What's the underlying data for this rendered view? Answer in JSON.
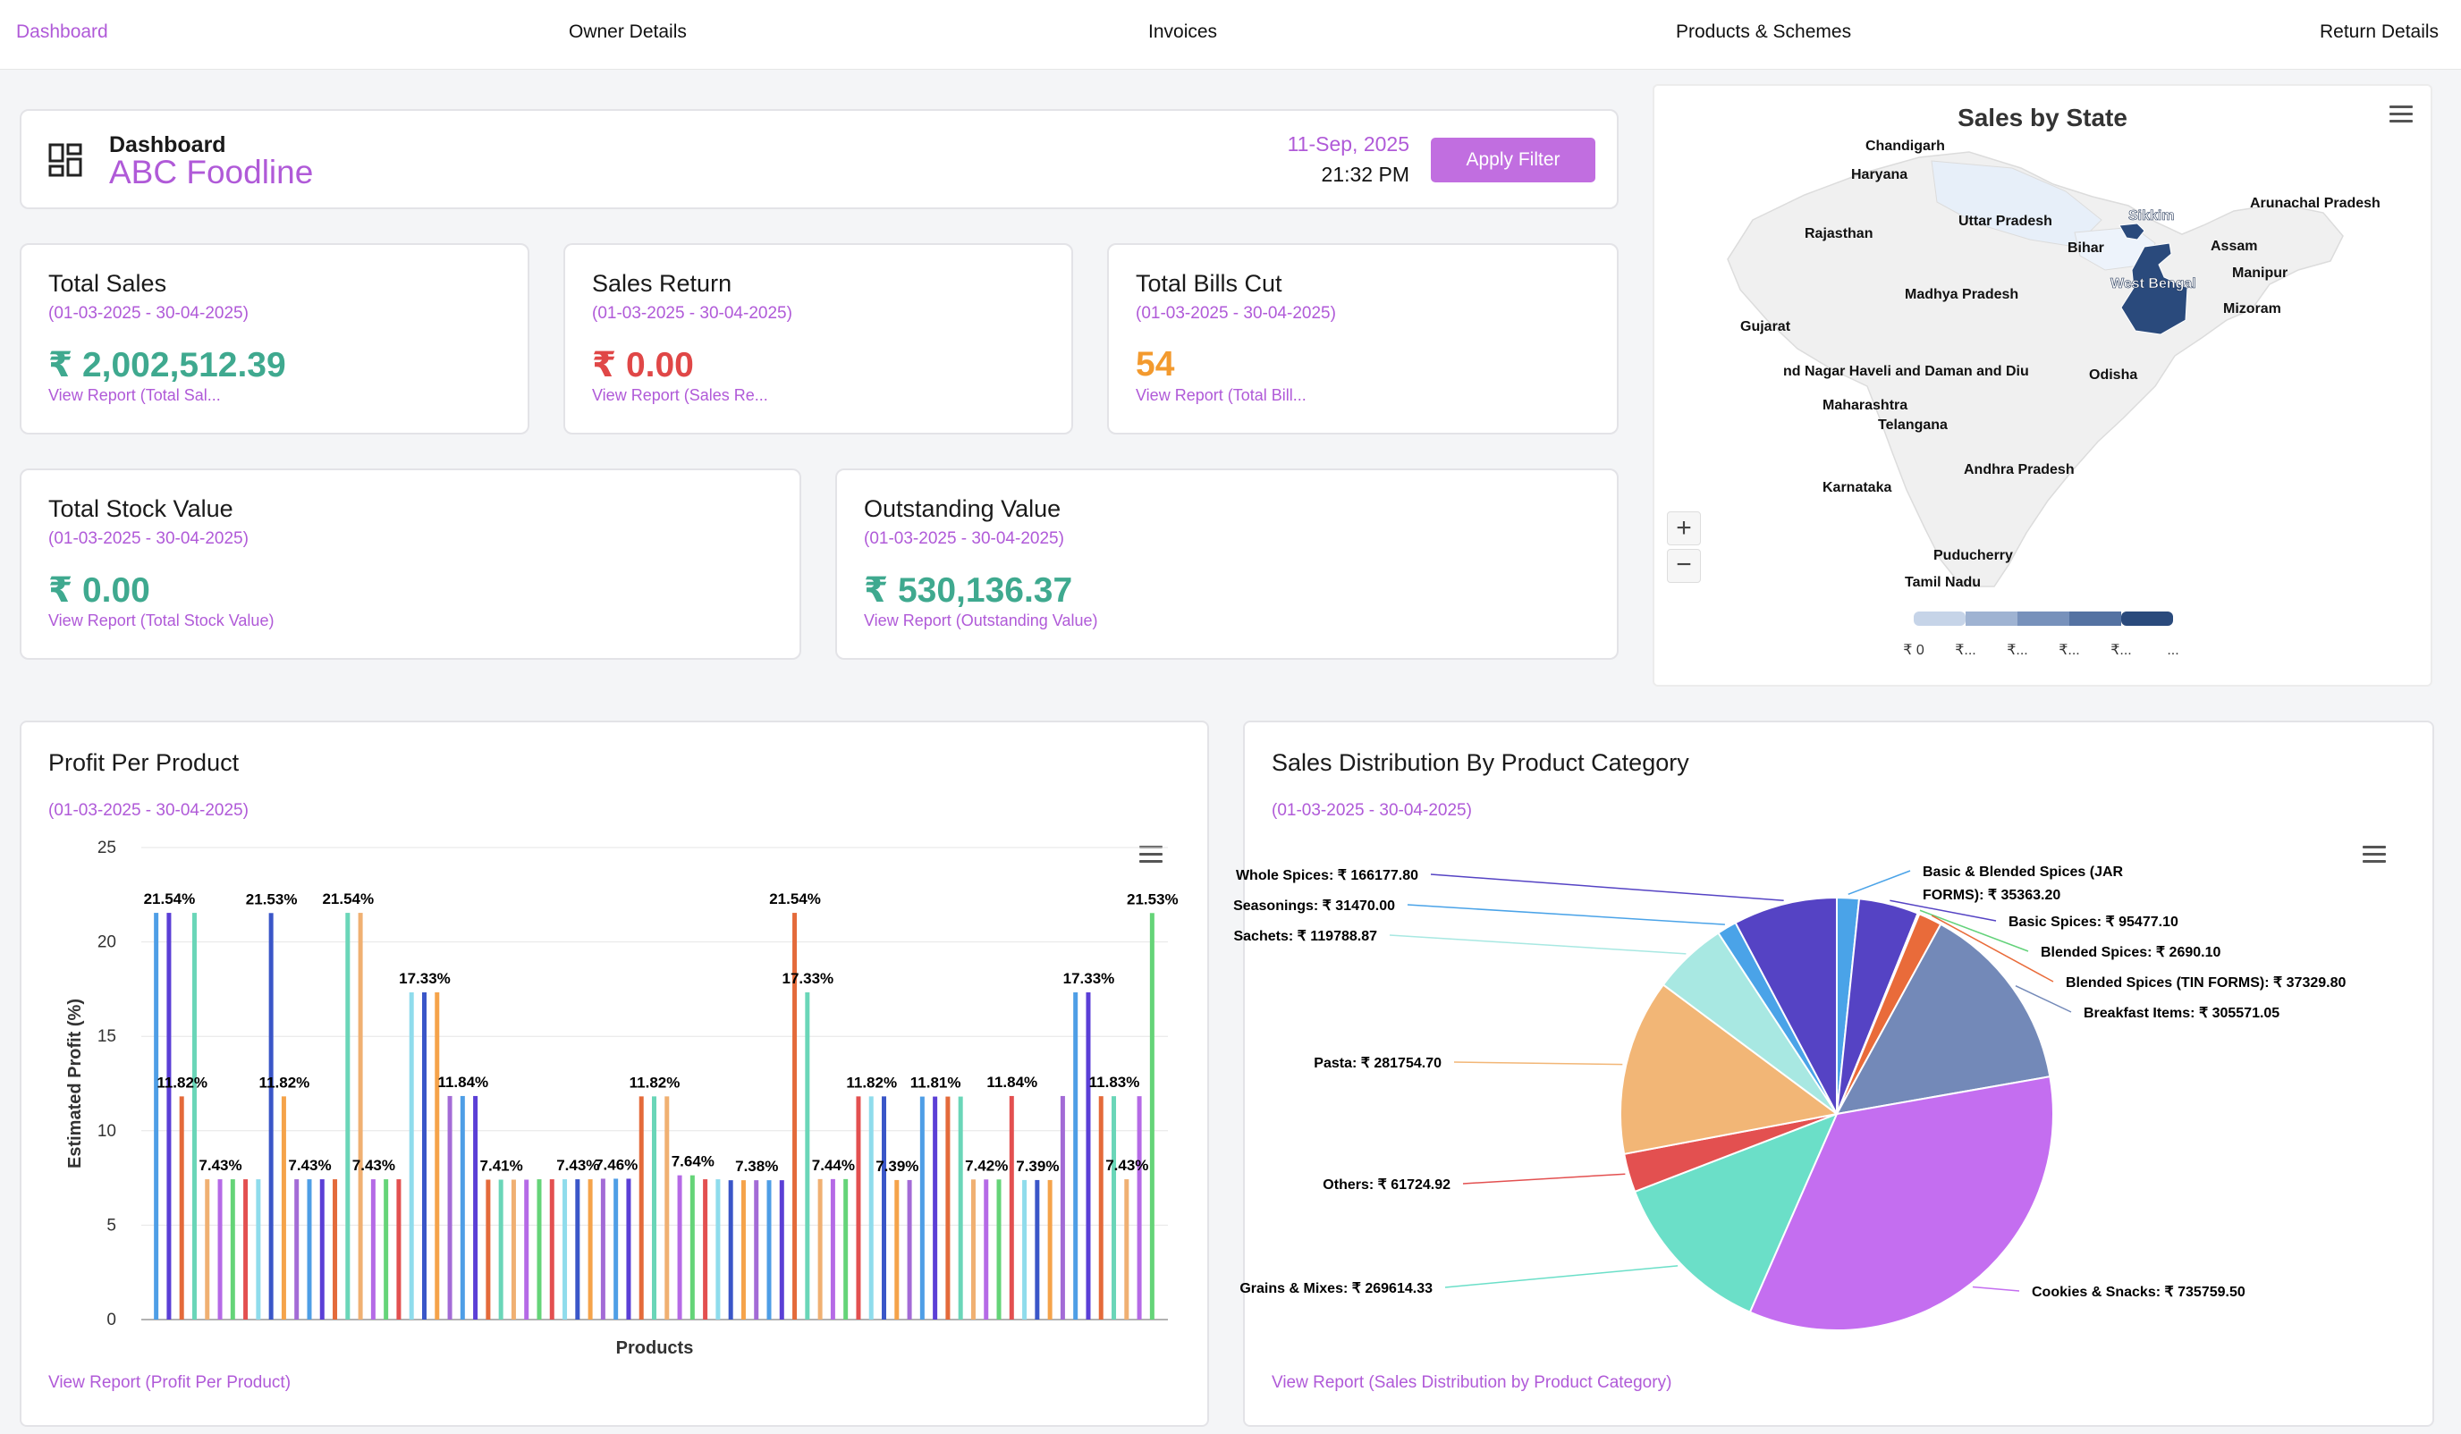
{
  "nav": {
    "items": [
      {
        "label": "Dashboard"
      },
      {
        "label": "Owner Details"
      },
      {
        "label": "Invoices"
      },
      {
        "label": "Products & Schemes"
      },
      {
        "label": "Return Details"
      }
    ]
  },
  "header": {
    "label": "Dashboard",
    "company": "ABC Foodline",
    "date": "11-Sep, 2025",
    "time": "21:32 PM",
    "apply_label": "Apply Filter",
    "icon": "dashboard-grid-icon"
  },
  "cards": {
    "total_sales": {
      "title": "Total Sales",
      "range": "(01-03-2025 - 30-04-2025)",
      "value": "₹ 2,002,512.39",
      "link": "View Report (Total Sal..."
    },
    "sales_return": {
      "title": "Sales Return",
      "range": "(01-03-2025 - 30-04-2025)",
      "value": "₹ 0.00",
      "link": "View Report (Sales Re..."
    },
    "total_bills": {
      "title": "Total Bills Cut",
      "range": "(01-03-2025 - 30-04-2025)",
      "value": "54",
      "link": "View Report (Total Bill..."
    },
    "stock_value": {
      "title": "Total Stock Value",
      "range": "(01-03-2025 - 30-04-2025)",
      "value": "₹ 0.00",
      "link": "View Report (Total Stock Value)"
    },
    "outstanding": {
      "title": "Outstanding Value",
      "range": "(01-03-2025 - 30-04-2025)",
      "value": "₹ 530,136.37",
      "link": "View Report (Outstanding Value)"
    }
  },
  "map": {
    "title": "Sales by State",
    "states": [
      {
        "name": "Chandigarh",
        "level": 0
      },
      {
        "name": "Haryana",
        "level": 0
      },
      {
        "name": "Uttar Pradesh",
        "level": 0.1
      },
      {
        "name": "Sikkim",
        "level": 0.85
      },
      {
        "name": "Arunachal Pradesh",
        "level": 0
      },
      {
        "name": "Rajasthan",
        "level": 0
      },
      {
        "name": "Bihar",
        "level": 0.05
      },
      {
        "name": "Assam",
        "level": 0
      },
      {
        "name": "Manipur",
        "level": 0
      },
      {
        "name": "West Bengal",
        "level": 0.9
      },
      {
        "name": "Madhya Pradesh",
        "level": 0
      },
      {
        "name": "Mizoram",
        "level": 0
      },
      {
        "name": "Gujarat",
        "level": 0
      },
      {
        "name": "nd Nagar Haveli and Daman and Diu",
        "level": 0
      },
      {
        "name": "Odisha",
        "level": 0
      },
      {
        "name": "Maharashtra",
        "level": 0
      },
      {
        "name": "Telangana",
        "level": 0
      },
      {
        "name": "Andhra Pradesh",
        "level": 0
      },
      {
        "name": "Karnataka",
        "level": 0
      },
      {
        "name": "Puducherry",
        "level": 0
      },
      {
        "name": "Tamil Nadu",
        "level": 0
      }
    ],
    "legend_labels": [
      "₹ 0",
      "₹...",
      "₹...",
      "₹...",
      "₹...",
      "..."
    ],
    "zoom_in": "+",
    "zoom_out": "−",
    "colors": {
      "low": "#e8f0fa",
      "high": "#2a4a7c",
      "base": "#f0f0f0"
    }
  },
  "profit_chart": {
    "title": "Profit Per Product",
    "range": "(01-03-2025 - 30-04-2025)",
    "link": "View Report (Profit Per Product)",
    "chart_data": {
      "type": "bar",
      "xlabel": "Products",
      "ylabel": "Estimated Profit (%)",
      "ylim": [
        0,
        25
      ],
      "yticks": [
        0,
        5,
        10,
        15,
        20,
        25
      ],
      "grid": true,
      "values": [
        21.54,
        21.54,
        11.82,
        21.54,
        7.43,
        7.43,
        7.43,
        7.43,
        7.43,
        21.53,
        11.82,
        7.43,
        7.43,
        7.43,
        7.43,
        21.54,
        21.54,
        7.43,
        7.43,
        7.43,
        17.33,
        17.33,
        17.33,
        11.84,
        11.84,
        11.84,
        7.41,
        7.41,
        7.41,
        7.41,
        7.43,
        7.43,
        7.43,
        7.43,
        7.43,
        7.46,
        7.46,
        7.46,
        11.82,
        11.82,
        11.82,
        7.64,
        7.64,
        7.43,
        7.43,
        7.38,
        7.38,
        7.38,
        7.38,
        7.38,
        21.54,
        17.33,
        7.44,
        7.44,
        7.44,
        11.82,
        11.82,
        11.82,
        7.39,
        7.39,
        11.81,
        11.81,
        11.81,
        11.81,
        7.42,
        7.42,
        7.42,
        11.84,
        7.39,
        7.39,
        7.39,
        11.84,
        17.33,
        17.33,
        11.83,
        11.83,
        7.43,
        11.83,
        21.53
      ],
      "data_labels": [
        {
          "index": 1,
          "text": "21.54%"
        },
        {
          "index": 2,
          "text": "11.82%"
        },
        {
          "index": 5,
          "text": "7.43%"
        },
        {
          "index": 9,
          "text": "21.53%"
        },
        {
          "index": 10,
          "text": "11.82%"
        },
        {
          "index": 12,
          "text": "7.43%"
        },
        {
          "index": 15,
          "text": "21.54%"
        },
        {
          "index": 17,
          "text": "7.43%"
        },
        {
          "index": 21,
          "text": "17.33%"
        },
        {
          "index": 24,
          "text": "11.84%"
        },
        {
          "index": 27,
          "text": "7.41%"
        },
        {
          "index": 33,
          "text": "7.43%"
        },
        {
          "index": 36,
          "text": "7.46%"
        },
        {
          "index": 39,
          "text": "11.82%"
        },
        {
          "index": 42,
          "text": "7.64%"
        },
        {
          "index": 47,
          "text": "7.38%"
        },
        {
          "index": 50,
          "text": "21.54%"
        },
        {
          "index": 51,
          "text": "17.33%"
        },
        {
          "index": 53,
          "text": "7.44%"
        },
        {
          "index": 56,
          "text": "11.82%"
        },
        {
          "index": 58,
          "text": "7.39%"
        },
        {
          "index": 61,
          "text": "11.81%"
        },
        {
          "index": 65,
          "text": "7.42%"
        },
        {
          "index": 67,
          "text": "11.84%"
        },
        {
          "index": 69,
          "text": "7.39%"
        },
        {
          "index": 73,
          "text": "17.33%"
        },
        {
          "index": 75,
          "text": "11.83%"
        },
        {
          "index": 76,
          "text": "7.43%"
        },
        {
          "index": 78,
          "text": "21.53%"
        }
      ],
      "colors": [
        "#4e9ee6",
        "#5b3fd6",
        "#e46a3a",
        "#6ad6b8",
        "#f0b072",
        "#b56ae6",
        "#65d478",
        "#e35050",
        "#8fdcec",
        "#3a56c8",
        "#f5a34a",
        "#a36bd6"
      ]
    }
  },
  "pie_chart": {
    "title": "Sales Distribution By Product Category",
    "range": "(01-03-2025 - 30-04-2025)",
    "link": "View Report (Sales Distribution by Product Category)",
    "chart_data": {
      "type": "pie",
      "slices": [
        {
          "name": "Basic & Blended Spices (JAR FORMS)",
          "label_lines": [
            "Basic & Blended Spices (JAR",
            "FORMS): ₹ 35363.20"
          ],
          "value": 35363.2,
          "color": "#4aa3e8"
        },
        {
          "name": "Basic Spices",
          "label_lines": [
            "Basic Spices: ₹ 95477.10"
          ],
          "value": 95477.1,
          "color": "#5543c4"
        },
        {
          "name": "Blended Spices",
          "label_lines": [
            "Blended Spices: ₹ 2690.10"
          ],
          "value": 2690.1,
          "color": "#63d27a"
        },
        {
          "name": "Blended Spices (TIN FORMS)",
          "label_lines": [
            "Blended Spices (TIN FORMS): ₹ 37329.80"
          ],
          "value": 37329.8,
          "color": "#e96b3a"
        },
        {
          "name": "Breakfast Items",
          "label_lines": [
            "Breakfast Items: ₹ 305571.05"
          ],
          "value": 305571.05,
          "color": "#7389b8"
        },
        {
          "name": "Cookies & Snacks",
          "label_lines": [
            "Cookies & Snacks: ₹ 735759.50"
          ],
          "value": 735759.5,
          "color": "#c46ef0"
        },
        {
          "name": "Grains & Mixes",
          "label_lines": [
            "Grains & Mixes: ₹ 269614.33"
          ],
          "value": 269614.33,
          "color": "#6bdfc8"
        },
        {
          "name": "Others",
          "label_lines": [
            "Others: ₹ 61724.92"
          ],
          "value": 61724.92,
          "color": "#e35050"
        },
        {
          "name": "Pasta",
          "label_lines": [
            "Pasta: ₹ 281754.70"
          ],
          "value": 281754.7,
          "color": "#f2b676"
        },
        {
          "name": "Sachets",
          "label_lines": [
            "Sachets: ₹ 119788.87"
          ],
          "value": 119788.87,
          "color": "#a8e8e2"
        },
        {
          "name": "Seasonings",
          "label_lines": [
            "Seasonings: ₹ 31470.00"
          ],
          "value": 31470.0,
          "color": "#4aa3e8"
        },
        {
          "name": "Whole Spices",
          "label_lines": [
            "Whole Spices: ₹ 166177.80"
          ],
          "value": 166177.8,
          "color": "#5543c4"
        }
      ]
    }
  }
}
